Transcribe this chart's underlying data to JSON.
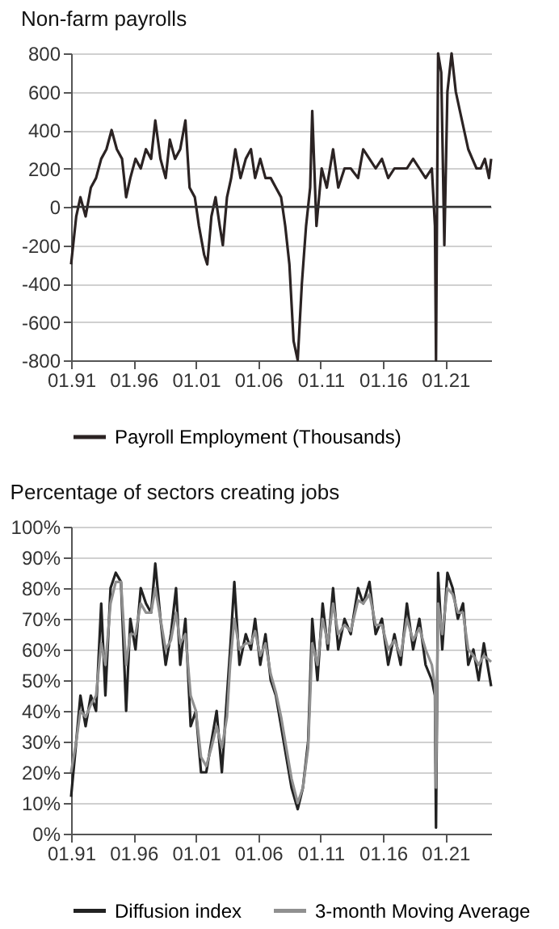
{
  "chart_data": [
    {
      "type": "line",
      "title": "Non-farm payrolls",
      "legend": "bottom",
      "grid": "y",
      "xlim": [
        "1991-01",
        "2024-09"
      ],
      "xticks": [
        {
          "value": "1991-01",
          "label": "01.91"
        },
        {
          "value": "1996-01",
          "label": "01.96"
        },
        {
          "value": "2001-01",
          "label": "01.01"
        },
        {
          "value": "2006-01",
          "label": "01.06"
        },
        {
          "value": "2011-01",
          "label": "01.11"
        },
        {
          "value": "2016-01",
          "label": "01.16"
        },
        {
          "value": "2021-01",
          "label": "01.21"
        }
      ],
      "ylim": [
        -800,
        800
      ],
      "yticks": [
        -800,
        -600,
        -400,
        -200,
        0,
        200,
        400,
        600,
        800
      ],
      "ref_lines": [
        {
          "axis": "y",
          "value": 0,
          "label": null,
          "color": "#333333"
        }
      ],
      "x": [
        "1991-01",
        "1991-06",
        "1991-10",
        "1992-03",
        "1992-08",
        "1993-01",
        "1993-06",
        "1993-11",
        "1994-04",
        "1994-09",
        "1995-02",
        "1995-06",
        "1995-10",
        "1996-03",
        "1996-08",
        "1997-01",
        "1997-06",
        "1997-10",
        "1998-03",
        "1998-08",
        "1998-12",
        "1999-05",
        "1999-10",
        "2000-03",
        "2000-07",
        "2000-12",
        "2001-04",
        "2001-09",
        "2001-12",
        "2002-04",
        "2002-08",
        "2002-12",
        "2003-03",
        "2003-07",
        "2003-11",
        "2004-03",
        "2004-08",
        "2005-01",
        "2005-06",
        "2005-10",
        "2006-03",
        "2006-08",
        "2007-01",
        "2007-06",
        "2007-11",
        "2008-03",
        "2008-07",
        "2008-11",
        "2009-03",
        "2009-07",
        "2009-11",
        "2010-03",
        "2010-05",
        "2010-09",
        "2011-02",
        "2011-07",
        "2012-01",
        "2012-06",
        "2012-12",
        "2013-06",
        "2014-01",
        "2014-06",
        "2014-12",
        "2015-06",
        "2015-12",
        "2016-06",
        "2016-12",
        "2017-06",
        "2017-12",
        "2018-06",
        "2018-12",
        "2019-06",
        "2019-12",
        "2020-03",
        "2020-04",
        "2020-06",
        "2020-09",
        "2020-12",
        "2021-03",
        "2021-07",
        "2021-11",
        "2022-03",
        "2022-07",
        "2022-11",
        "2023-03",
        "2023-07",
        "2023-11",
        "2024-03",
        "2024-07",
        "2024-09"
      ],
      "series": [
        {
          "name": "Payroll Employment (Thousands)",
          "color": "#2b2323",
          "values": [
            -300,
            -50,
            50,
            -50,
            100,
            150,
            250,
            300,
            400,
            300,
            250,
            50,
            150,
            250,
            200,
            300,
            250,
            450,
            250,
            150,
            350,
            250,
            300,
            450,
            100,
            50,
            -100,
            -250,
            -300,
            -50,
            50,
            -100,
            -200,
            50,
            150,
            300,
            150,
            250,
            300,
            150,
            250,
            150,
            150,
            100,
            50,
            -100,
            -300,
            -700,
            -800,
            -400,
            -100,
            100,
            500,
            -100,
            200,
            100,
            300,
            100,
            200,
            200,
            150,
            300,
            250,
            200,
            250,
            150,
            200,
            200,
            200,
            250,
            200,
            150,
            200,
            -100,
            -800,
            800,
            700,
            -200,
            600,
            800,
            600,
            500,
            400,
            300,
            250,
            200,
            200,
            250,
            150,
            250
          ]
        }
      ]
    },
    {
      "type": "line",
      "title": "Percentage of sectors creating jobs",
      "legend": "bottom",
      "grid": "y",
      "xlim": [
        "1991-01",
        "2024-09"
      ],
      "xticks": [
        {
          "value": "1991-01",
          "label": "01.91"
        },
        {
          "value": "1996-01",
          "label": "01.96"
        },
        {
          "value": "2001-01",
          "label": "01.01"
        },
        {
          "value": "2006-01",
          "label": "01.06"
        },
        {
          "value": "2011-01",
          "label": "01.11"
        },
        {
          "value": "2016-01",
          "label": "01.16"
        },
        {
          "value": "2021-01",
          "label": "01.21"
        }
      ],
      "ylim": [
        0,
        100
      ],
      "yticks": [
        {
          "value": 0,
          "label": "0%"
        },
        {
          "value": 10,
          "label": "10%"
        },
        {
          "value": 20,
          "label": "20%"
        },
        {
          "value": 30,
          "label": "30%"
        },
        {
          "value": 40,
          "label": "40%"
        },
        {
          "value": 50,
          "label": "50%"
        },
        {
          "value": 60,
          "label": "60%"
        },
        {
          "value": 70,
          "label": "70%"
        },
        {
          "value": 80,
          "label": "80%"
        },
        {
          "value": 90,
          "label": "90%"
        },
        {
          "value": 100,
          "label": "100%"
        }
      ],
      "x": [
        "1991-01",
        "1991-06",
        "1991-10",
        "1992-03",
        "1992-08",
        "1993-01",
        "1993-06",
        "1993-10",
        "1994-03",
        "1994-08",
        "1995-01",
        "1995-06",
        "1995-10",
        "1996-03",
        "1996-08",
        "1997-01",
        "1997-06",
        "1997-10",
        "1998-03",
        "1998-08",
        "1999-01",
        "1999-06",
        "1999-10",
        "2000-03",
        "2000-08",
        "2001-01",
        "2001-06",
        "2001-11",
        "2002-04",
        "2002-09",
        "2003-02",
        "2003-07",
        "2003-10",
        "2004-02",
        "2004-07",
        "2005-01",
        "2005-06",
        "2005-10",
        "2006-03",
        "2006-08",
        "2007-01",
        "2007-06",
        "2007-11",
        "2008-04",
        "2008-09",
        "2009-03",
        "2009-08",
        "2010-01",
        "2010-05",
        "2010-10",
        "2011-03",
        "2011-08",
        "2012-01",
        "2012-06",
        "2012-12",
        "2013-06",
        "2014-01",
        "2014-06",
        "2014-12",
        "2015-06",
        "2015-12",
        "2016-06",
        "2016-12",
        "2017-06",
        "2017-12",
        "2018-06",
        "2018-12",
        "2019-06",
        "2019-12",
        "2020-03",
        "2020-04",
        "2020-06",
        "2020-10",
        "2021-03",
        "2021-08",
        "2022-01",
        "2022-06",
        "2022-11",
        "2023-04",
        "2023-09",
        "2024-02",
        "2024-09"
      ],
      "series": [
        {
          "name": "Diffusion index",
          "color": "#222222",
          "values": [
            12,
            30,
            45,
            35,
            45,
            40,
            75,
            45,
            80,
            85,
            82,
            40,
            70,
            60,
            80,
            75,
            72,
            88,
            70,
            55,
            65,
            80,
            55,
            70,
            35,
            40,
            20,
            20,
            30,
            40,
            20,
            45,
            60,
            82,
            55,
            65,
            60,
            70,
            55,
            65,
            50,
            45,
            35,
            25,
            15,
            8,
            15,
            30,
            70,
            50,
            75,
            60,
            80,
            60,
            70,
            65,
            80,
            75,
            82,
            65,
            70,
            55,
            65,
            55,
            75,
            60,
            70,
            55,
            50,
            45,
            2,
            85,
            60,
            85,
            80,
            70,
            75,
            55,
            60,
            50,
            62,
            48
          ]
        },
        {
          "name": "3-month Moving Average",
          "color": "#909090",
          "values": [
            20,
            30,
            40,
            38,
            42,
            45,
            62,
            55,
            75,
            82,
            82,
            55,
            65,
            65,
            75,
            72,
            72,
            80,
            70,
            60,
            63,
            72,
            62,
            65,
            45,
            40,
            25,
            22,
            28,
            35,
            28,
            38,
            55,
            70,
            60,
            62,
            62,
            66,
            58,
            62,
            52,
            46,
            38,
            28,
            18,
            10,
            15,
            28,
            62,
            55,
            70,
            62,
            75,
            65,
            68,
            66,
            76,
            75,
            78,
            68,
            68,
            60,
            63,
            58,
            70,
            63,
            67,
            60,
            55,
            48,
            15,
            75,
            65,
            80,
            78,
            72,
            72,
            60,
            58,
            55,
            58,
            56
          ]
        }
      ]
    }
  ]
}
